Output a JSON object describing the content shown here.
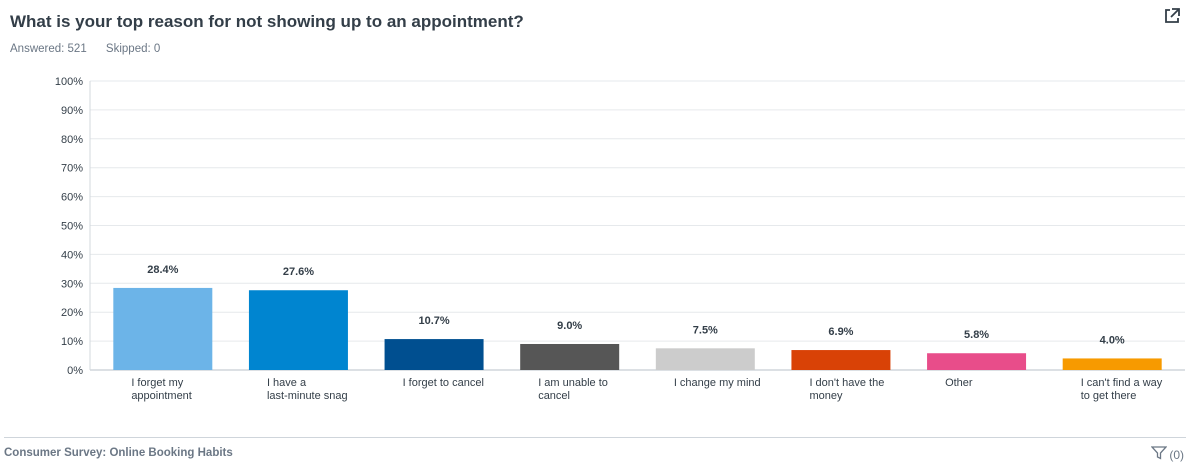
{
  "question": {
    "title": "What is your top reason for not showing up to an appointment?",
    "answered": "Answered: 521",
    "skipped": "Skipped: 0"
  },
  "footer": {
    "survey_name": "Consumer Survey: Online Booking Habits",
    "filter_count": "(0)"
  },
  "icons": {
    "export": "external-link-icon",
    "filter": "filter-icon"
  },
  "chart_data": {
    "type": "bar",
    "categories": [
      [
        "I forget my",
        "appointment"
      ],
      [
        "I have a",
        "last-minute snag"
      ],
      [
        "I forget to cancel"
      ],
      [
        "I am unable to",
        "cancel"
      ],
      [
        "I change my mind"
      ],
      [
        "I don't have the",
        "money"
      ],
      [
        "Other"
      ],
      [
        "I can't find a way",
        "to get there"
      ]
    ],
    "values": [
      28.4,
      27.6,
      10.7,
      9.0,
      7.5,
      6.9,
      5.8,
      4.0
    ],
    "data_labels": [
      "28.4%",
      "27.6%",
      "10.7%",
      "9.0%",
      "7.5%",
      "6.9%",
      "5.8%",
      "4.0%"
    ],
    "colors": [
      "#6cb4e8",
      "#0085d0",
      "#004f90",
      "#565656",
      "#cccccc",
      "#d94206",
      "#e84d8a",
      "#f79a00"
    ],
    "yticks": [
      "0%",
      "10%",
      "20%",
      "30%",
      "40%",
      "50%",
      "60%",
      "70%",
      "80%",
      "90%",
      "100%"
    ],
    "ylim": [
      0,
      100
    ],
    "grid": true
  }
}
